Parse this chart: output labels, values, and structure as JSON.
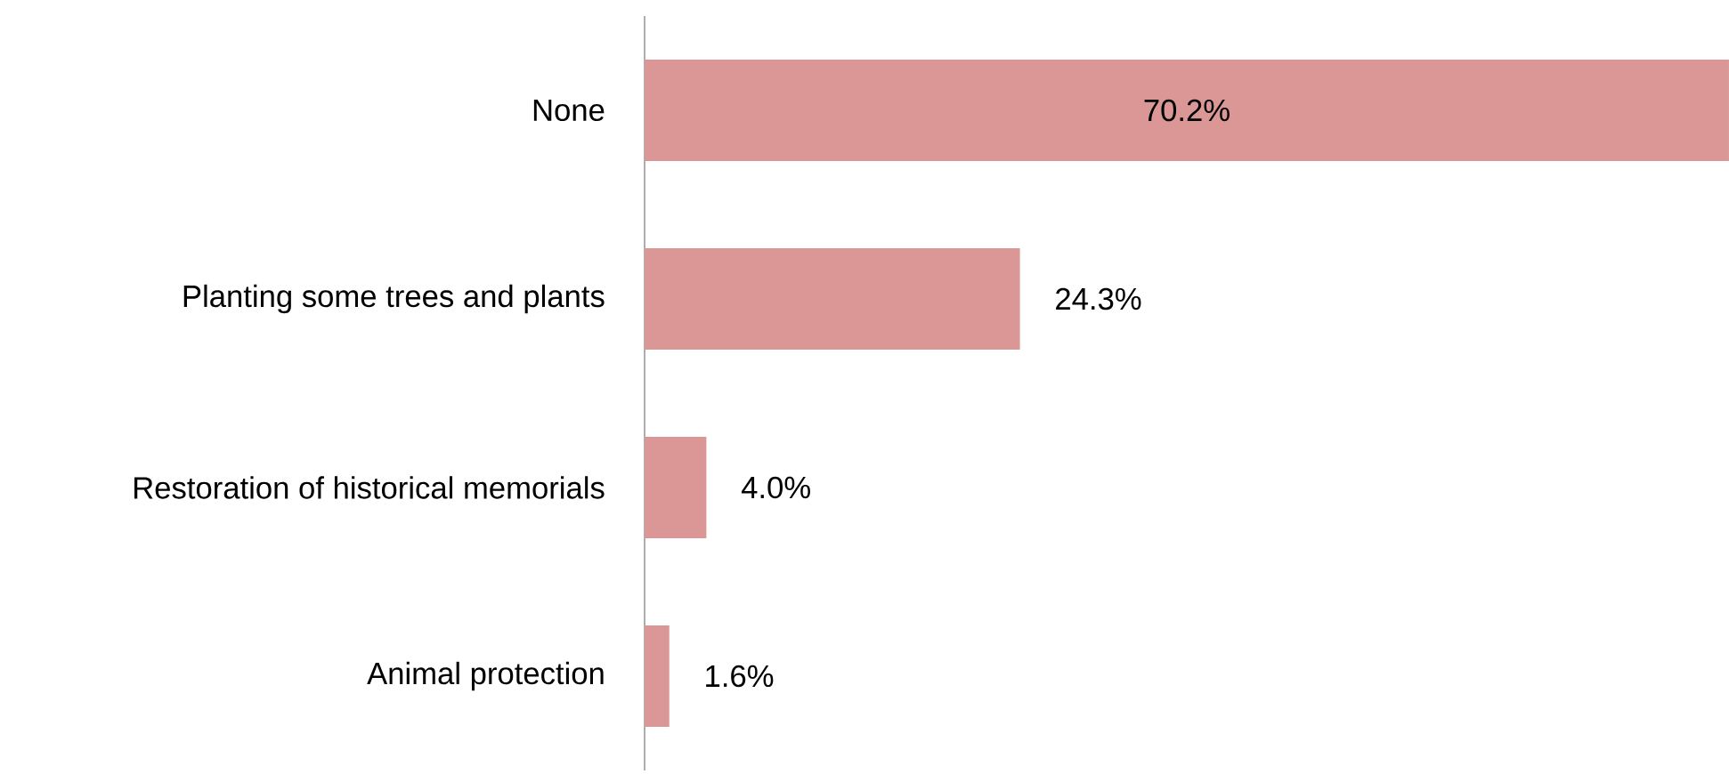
{
  "chart_data": {
    "type": "bar",
    "orientation": "horizontal",
    "categories": [
      "None",
      "Planting some trees and plants",
      "Restoration of historical memorials",
      "Animal protection"
    ],
    "values": [
      70.2,
      24.3,
      4.0,
      1.6
    ],
    "value_labels": [
      "70.2%",
      "24.3%",
      "4.0%",
      "1.6%"
    ],
    "color": "#db9696"
  }
}
